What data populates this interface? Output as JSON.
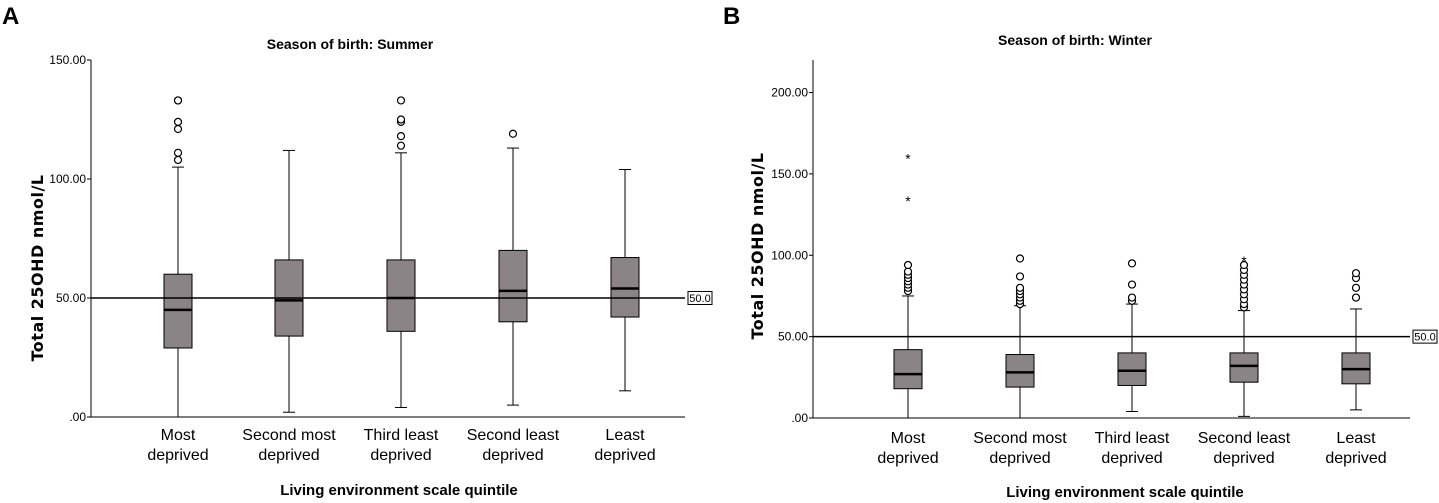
{
  "chart_data": [
    {
      "type": "boxplot",
      "panel": "A",
      "title": "Season of birth: Summer",
      "ylabel": "Total 25OHD nmol/L",
      "xlabel": "Living environment scale quintile",
      "ylim": [
        0,
        150
      ],
      "yticks": [
        0,
        50,
        100,
        150
      ],
      "ytick_labels": [
        ".00",
        "50.00",
        "100.00",
        "150.00"
      ],
      "reference_line": {
        "value": 50,
        "label": "50.0"
      },
      "categories": [
        [
          "Most",
          "deprived"
        ],
        [
          "Second most",
          "deprived"
        ],
        [
          "Third least",
          "deprived"
        ],
        [
          "Second least",
          "deprived"
        ],
        [
          "Least",
          "deprived"
        ]
      ],
      "boxes": [
        {
          "min": 0,
          "q1": 29,
          "median": 45,
          "q3": 60,
          "max": 105,
          "outliers": [
            108,
            111,
            121,
            124,
            133,
            133
          ],
          "extremes": []
        },
        {
          "min": 2,
          "q1": 34,
          "median": 49,
          "q3": 66,
          "max": 112,
          "outliers": [],
          "extremes": []
        },
        {
          "min": 4,
          "q1": 36,
          "median": 50,
          "q3": 66,
          "max": 111,
          "outliers": [
            114,
            118,
            124,
            125,
            133
          ],
          "extremes": []
        },
        {
          "min": 5,
          "q1": 40,
          "median": 53,
          "q3": 70,
          "max": 113,
          "outliers": [
            119
          ],
          "extremes": []
        },
        {
          "min": 11,
          "q1": 42,
          "median": 54,
          "q3": 67,
          "max": 104,
          "outliers": [],
          "extremes": []
        }
      ]
    },
    {
      "type": "boxplot",
      "panel": "B",
      "title": "Season of birth: Winter",
      "ylabel": "Total 25OHD nmol/L",
      "xlabel": "Living environment scale quintile",
      "ylim": [
        0,
        220
      ],
      "yticks": [
        0,
        50,
        100,
        150,
        200
      ],
      "ytick_labels": [
        ".00",
        "50.00",
        "100.00",
        "150.00",
        "200.00"
      ],
      "reference_line": {
        "value": 50,
        "label": "50.0"
      },
      "categories": [
        [
          "Most",
          "deprived"
        ],
        [
          "Second most",
          "deprived"
        ],
        [
          "Third least",
          "deprived"
        ],
        [
          "Second least",
          "deprived"
        ],
        [
          "Least",
          "deprived"
        ]
      ],
      "boxes": [
        {
          "min": 0,
          "q1": 18,
          "median": 27,
          "q3": 42,
          "max": 75,
          "outliers": [
            78,
            80,
            82,
            84,
            86,
            88,
            90,
            94
          ],
          "extremes": [
            134,
            160
          ]
        },
        {
          "min": 0,
          "q1": 19,
          "median": 28,
          "q3": 39,
          "max": 69,
          "outliers": [
            70,
            72,
            74,
            76,
            78,
            80,
            87,
            98
          ],
          "extremes": []
        },
        {
          "min": 4,
          "q1": 20,
          "median": 29,
          "q3": 40,
          "max": 70,
          "outliers": [
            72,
            74,
            82,
            95
          ],
          "extremes": []
        },
        {
          "min": 1,
          "q1": 22,
          "median": 32,
          "q3": 40,
          "max": 66,
          "outliers": [
            68,
            70,
            73,
            76,
            79,
            82,
            85,
            88,
            91,
            94
          ],
          "extremes": [
            97
          ]
        },
        {
          "min": 5,
          "q1": 21,
          "median": 30,
          "q3": 40,
          "max": 67,
          "outliers": [
            74,
            80,
            86,
            89
          ],
          "extremes": []
        }
      ]
    }
  ]
}
